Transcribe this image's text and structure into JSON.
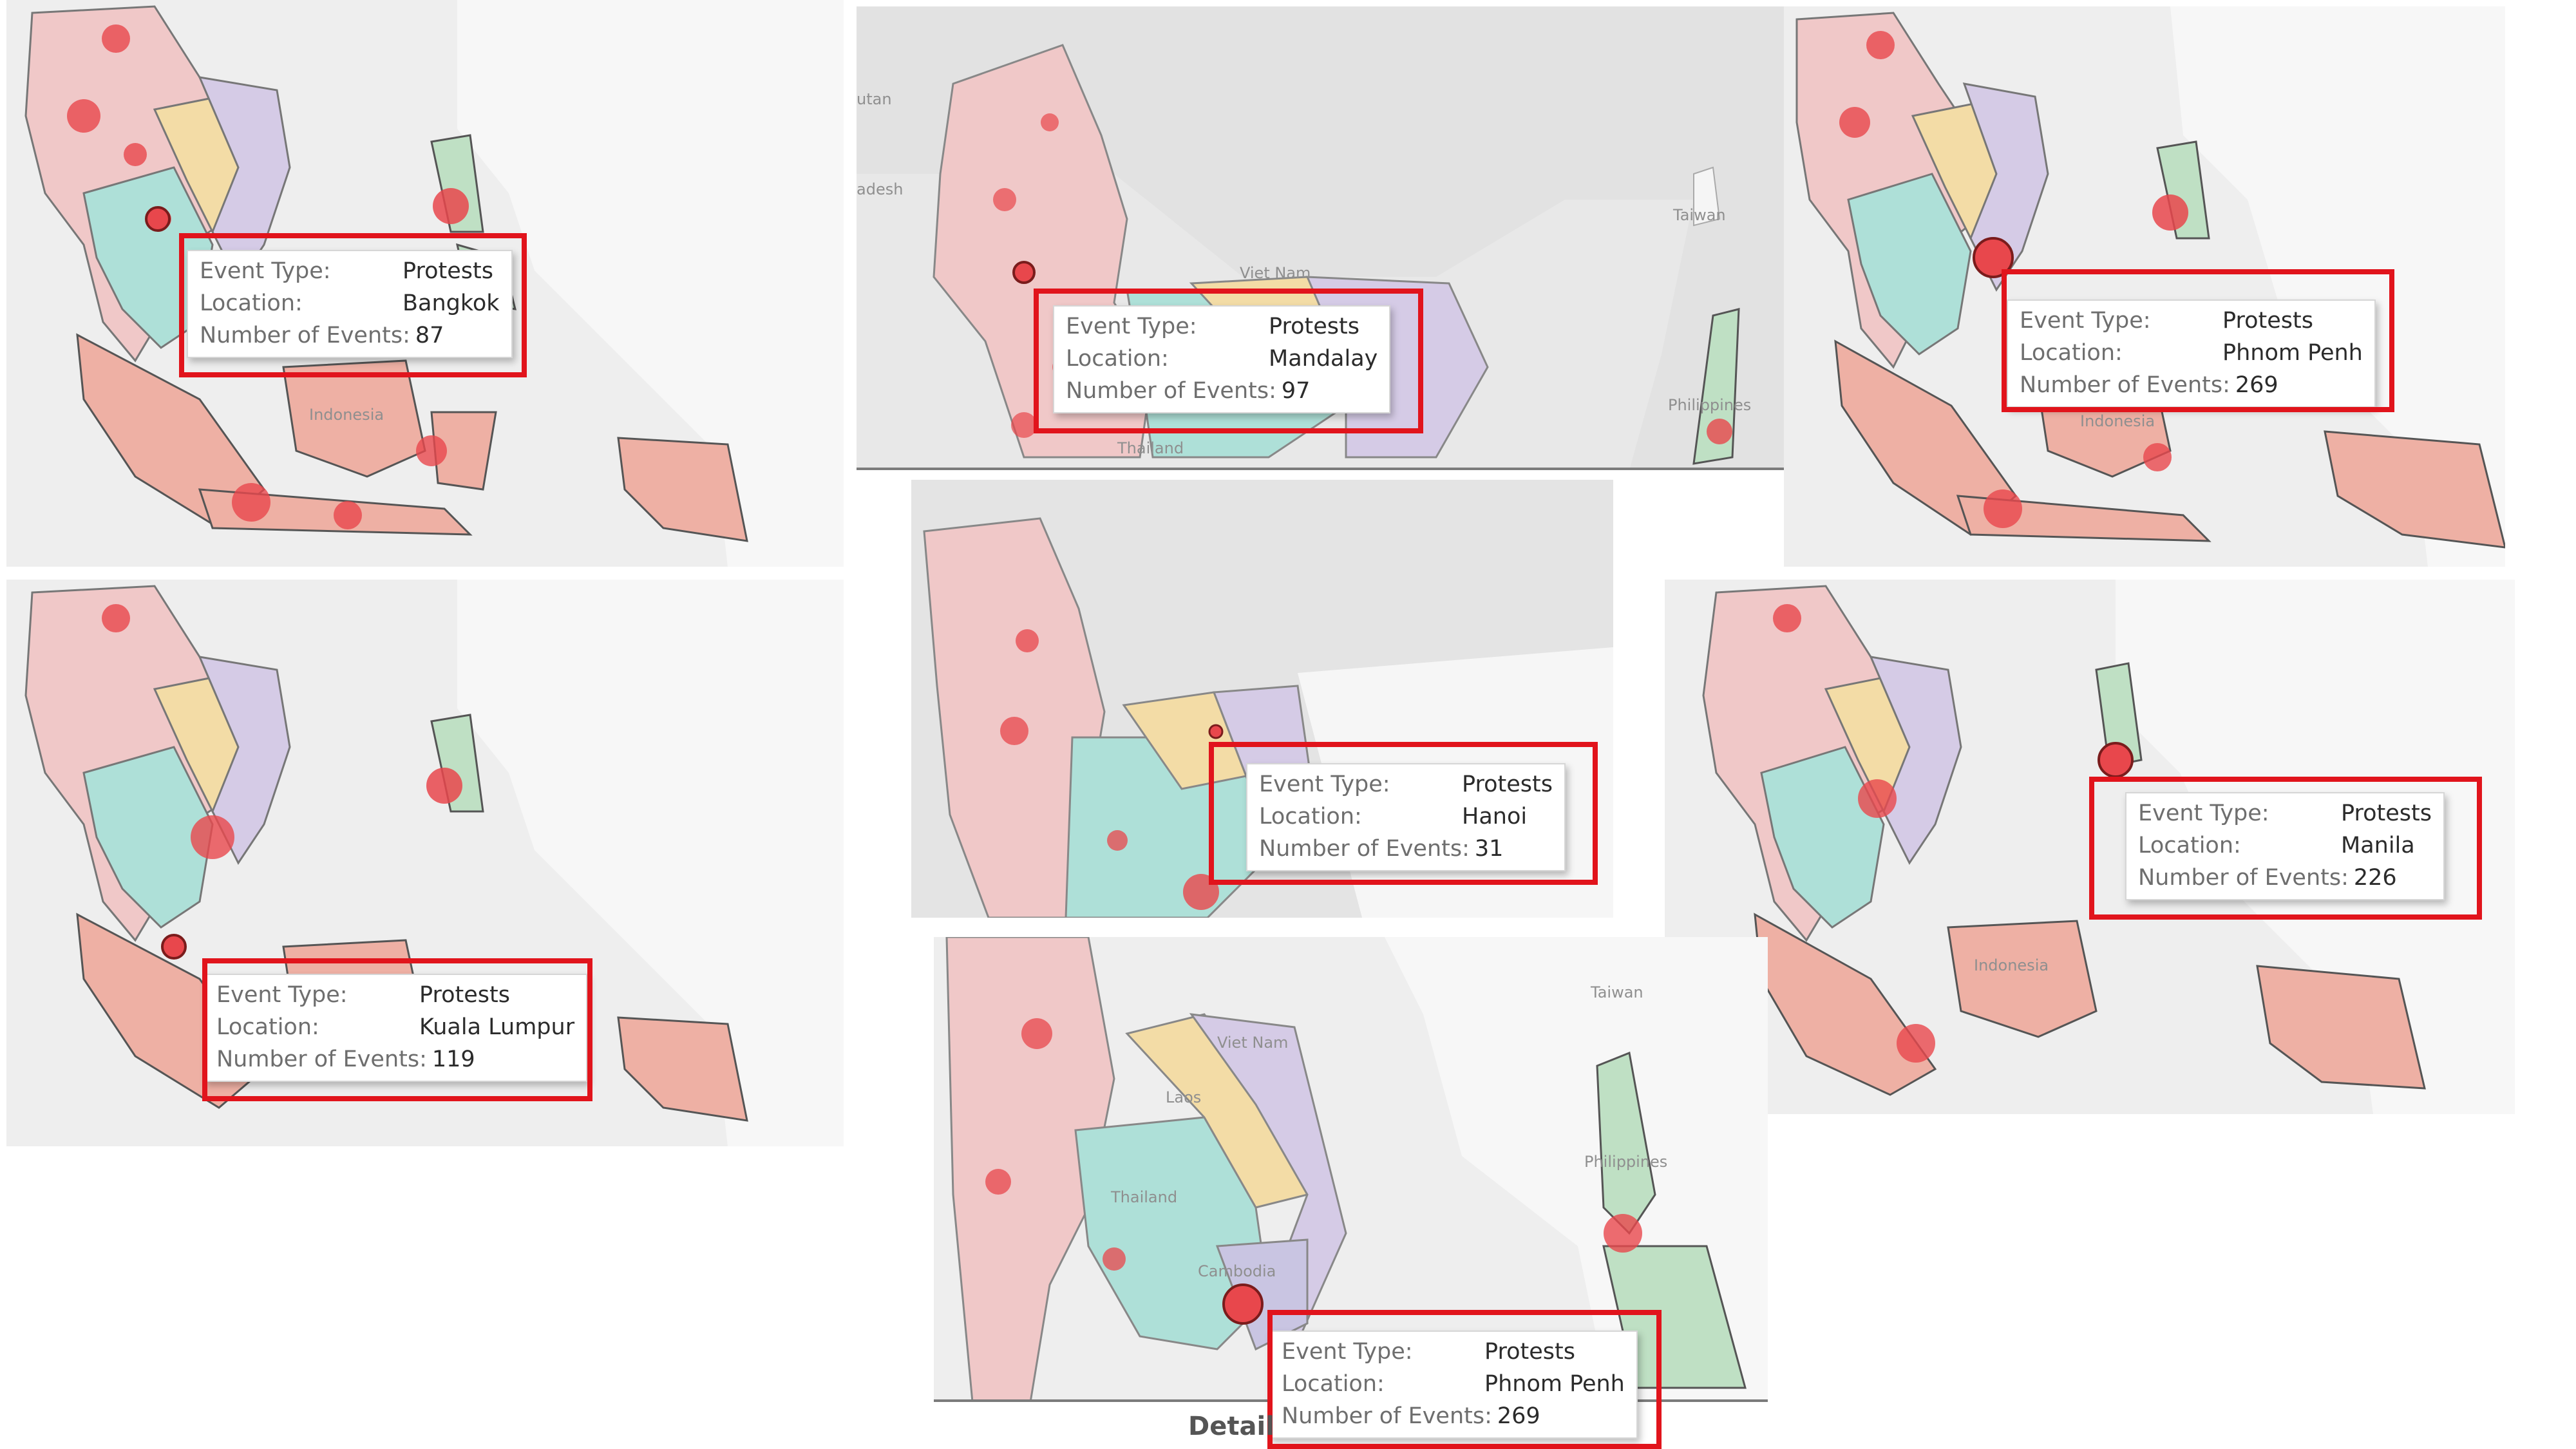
{
  "panels": [
    {
      "event_type_label": "Event Type:",
      "event_type": "Protests",
      "location_label": "Location:",
      "location": "Bangkok",
      "events_label": "Number of Events:",
      "events": "87",
      "map_labels": [
        "Indonesia"
      ]
    },
    {
      "event_type_label": "Event Type:",
      "event_type": "Protests",
      "location_label": "Location:",
      "location": "Mandalay",
      "events_label": "Number of Events:",
      "events": "97",
      "map_labels": [
        "utan",
        "adesh",
        "Viet Nam",
        "Taiwan",
        "Thailand",
        "Philippines"
      ]
    },
    {
      "event_type_label": "Event Type:",
      "event_type": "Protests",
      "location_label": "Location:",
      "location": "Phnom Penh",
      "events_label": "Number of Events:",
      "events": "269",
      "map_labels": [
        "Indonesia"
      ]
    },
    {
      "event_type_label": "Event Type:",
      "event_type": "Protests",
      "location_label": "Location:",
      "location": "Kuala Lumpur",
      "events_label": "Number of Events:",
      "events": "119",
      "map_labels": []
    },
    {
      "event_type_label": "Event Type:",
      "event_type": "Protests",
      "location_label": "Location:",
      "location": "Hanoi",
      "events_label": "Number of Events:",
      "events": "31",
      "map_labels": []
    },
    {
      "event_type_label": "Event Type:",
      "event_type": "Protests",
      "location_label": "Location:",
      "location": "Manila",
      "events_label": "Number of Events:",
      "events": "226",
      "map_labels": [
        "Indonesia"
      ]
    },
    {
      "event_type_label": "Event Type:",
      "event_type": "Protests",
      "location_label": "Location:",
      "location": "Phnom Penh",
      "events_label": "Number of Events:",
      "events": "269",
      "map_labels": [
        "Taiwan",
        "Viet Nam",
        "Laos",
        "Thailand",
        "Cambodia",
        "Philippines"
      ]
    }
  ],
  "footer": {
    "label": "Detail"
  },
  "colors": {
    "highlight": "#e1141c",
    "marker": "#e8474c",
    "myanmar": "#f0c8c8",
    "thailand": "#aee0d8",
    "laos": "#f3dca6",
    "vietnam": "#d5cbe6",
    "cambodia": "#c9c5e2",
    "indonesia": "#eeb0a4",
    "philippines": "#bfe0c4"
  }
}
